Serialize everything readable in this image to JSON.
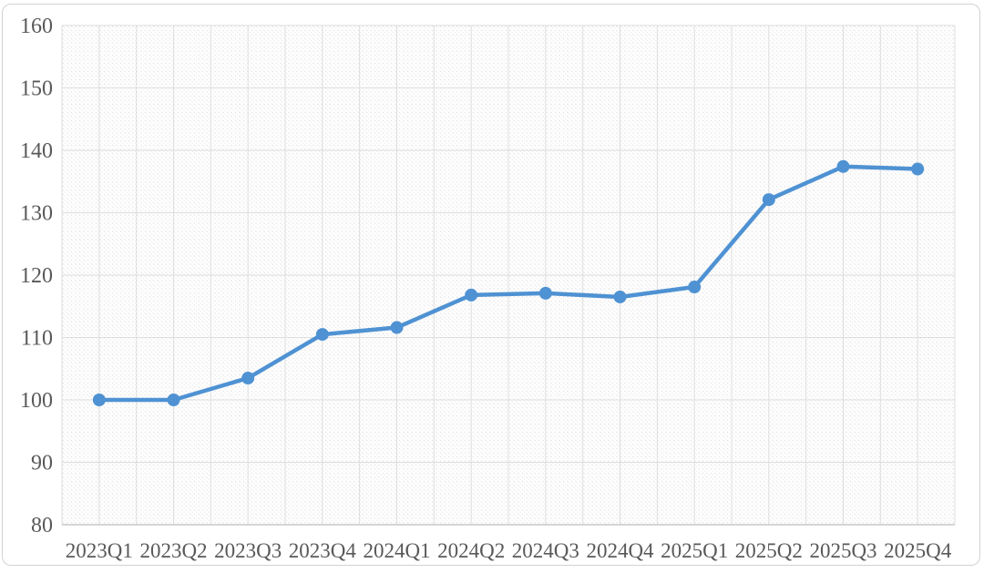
{
  "chart_data": {
    "type": "line",
    "title": "",
    "categories": [
      "2023Q1",
      "2023Q2",
      "2023Q3",
      "2023Q4",
      "2024Q1",
      "2024Q2",
      "2024Q3",
      "2024Q4",
      "2025Q1",
      "2025Q2",
      "2025Q3",
      "2025Q4"
    ],
    "values": [
      100.0,
      100.0,
      103.5,
      110.5,
      111.6,
      116.8,
      117.1,
      116.5,
      118.1,
      132.1,
      137.4,
      137.0
    ],
    "xlabel": "",
    "ylabel": "",
    "ylim": [
      80,
      160
    ],
    "y_ticks": [
      80,
      90,
      100,
      110,
      120,
      130,
      140,
      150,
      160
    ],
    "y_tick_labels": [
      "80",
      "90",
      "100",
      "110",
      "120",
      "130",
      "140",
      "150",
      "160"
    ],
    "legend": "none",
    "grid": {
      "horizontal": "major every 10 units",
      "vertical": "lines at category boundaries and category centers",
      "plot_background": "light diagonal hatch pattern"
    },
    "marker": "filled circle",
    "colors": {
      "line": "#4F92D3",
      "marker": "#4F92D3",
      "gridline": "#DEDEDE",
      "axis_line": "#C9C9C9",
      "tick_label": "#595959",
      "hatch": "#E7E7E7",
      "frame_border": "#D2D2D2",
      "background": "#FFFFFF"
    }
  }
}
